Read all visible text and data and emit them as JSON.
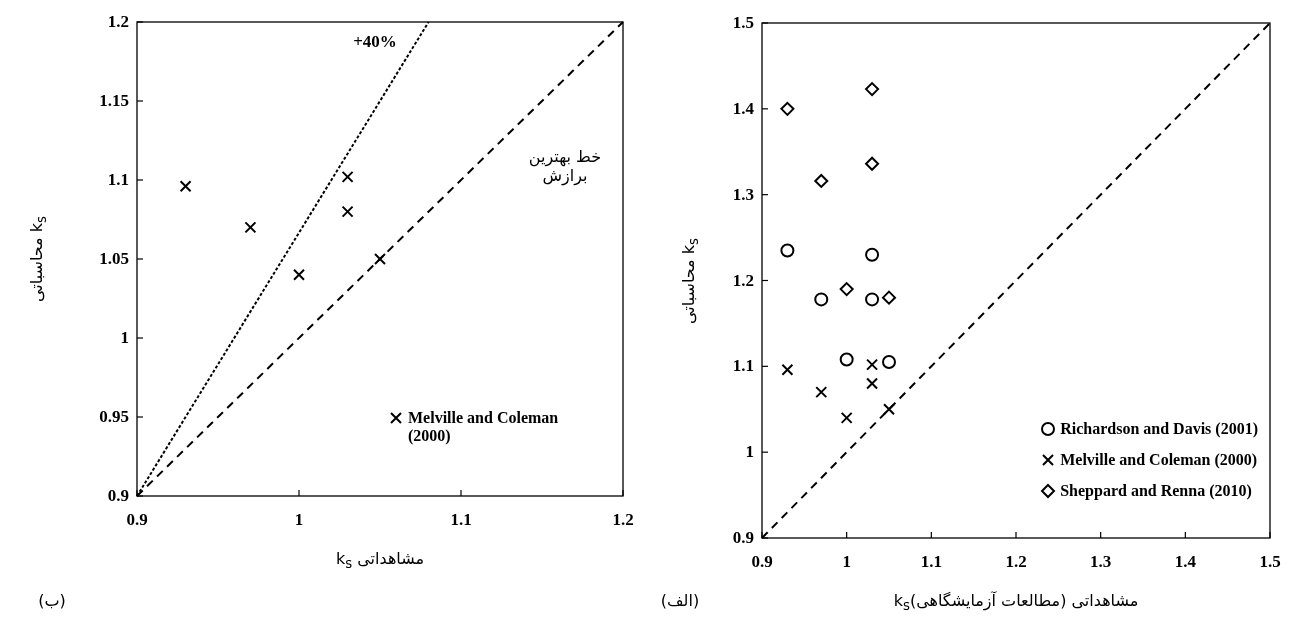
{
  "chart_data": [
    {
      "type": "scatter",
      "xlabel": "مشاهداتی k$_{s}$",
      "ylabel": "k$_{s}$ محاسباتی",
      "xlim": [
        0.9,
        1.2
      ],
      "ylim": [
        0.9,
        1.2
      ],
      "xticks": [
        0.9,
        1,
        1.1,
        1.2
      ],
      "yticks": [
        0.9,
        0.95,
        1,
        1.05,
        1.1,
        1.15,
        1.2
      ],
      "legend": "bottom right",
      "series": [
        {
          "name": "Melville and Coleman (2000)",
          "marker": "cross",
          "color": "#000000",
          "x": [
            0.93,
            0.97,
            1.0,
            1.03,
            1.03,
            1.05
          ],
          "values": [
            1.096,
            1.07,
            1.04,
            1.102,
            1.08,
            1.05
          ]
        },
        {
          "type": "line",
          "line_style": "dotted",
          "color": "#000000",
          "x": [
            0.9,
            1.08
          ],
          "values": [
            0.9,
            1.2
          ]
        },
        {
          "type": "line",
          "line_style": "dashed",
          "color": "#000000",
          "x": [
            0.9,
            1.2
          ],
          "values": [
            0.9,
            1.2
          ]
        }
      ],
      "annotations": [
        "+40%",
        "خط بهترین برازش",
        "(ب)"
      ]
    },
    {
      "type": "scatter",
      "xlabel": "مشاهداتی (مطالعات آزمایشگاهی)k$_{s}$",
      "ylabel": "k$_{s}$ محاسباتی",
      "xlim": [
        0.9,
        1.5
      ],
      "ylim": [
        0.9,
        1.5
      ],
      "xticks": [
        0.9,
        1,
        1.1,
        1.2,
        1.3,
        1.4,
        1.5
      ],
      "yticks": [
        0.9,
        1,
        1.1,
        1.2,
        1.3,
        1.4,
        1.5
      ],
      "legend": "bottom right",
      "series": [
        {
          "name": "Richardson and Davis (2001)",
          "marker": "circle",
          "color": "#000000",
          "x": [
            0.93,
            0.97,
            1.0,
            1.03,
            1.03,
            1.05
          ],
          "values": [
            1.235,
            1.178,
            1.108,
            1.23,
            1.178,
            1.105
          ]
        },
        {
          "name": "Melville and Coleman (2000)",
          "marker": "cross",
          "color": "#000000",
          "x": [
            0.93,
            0.97,
            1.0,
            1.03,
            1.03,
            1.05
          ],
          "values": [
            1.096,
            1.07,
            1.04,
            1.102,
            1.08,
            1.05
          ]
        },
        {
          "name": "Sheppard and Renna (2010)",
          "marker": "diamond",
          "color": "#000000",
          "x": [
            0.93,
            0.97,
            1.0,
            1.03,
            1.03,
            1.05
          ],
          "values": [
            1.4,
            1.316,
            1.19,
            1.423,
            1.336,
            1.18
          ]
        },
        {
          "type": "line",
          "line_style": "dashed",
          "color": "#000000",
          "x": [
            0.9,
            1.5
          ],
          "values": [
            0.9,
            1.5
          ]
        }
      ],
      "annotations": [
        "(الف)"
      ]
    }
  ]
}
